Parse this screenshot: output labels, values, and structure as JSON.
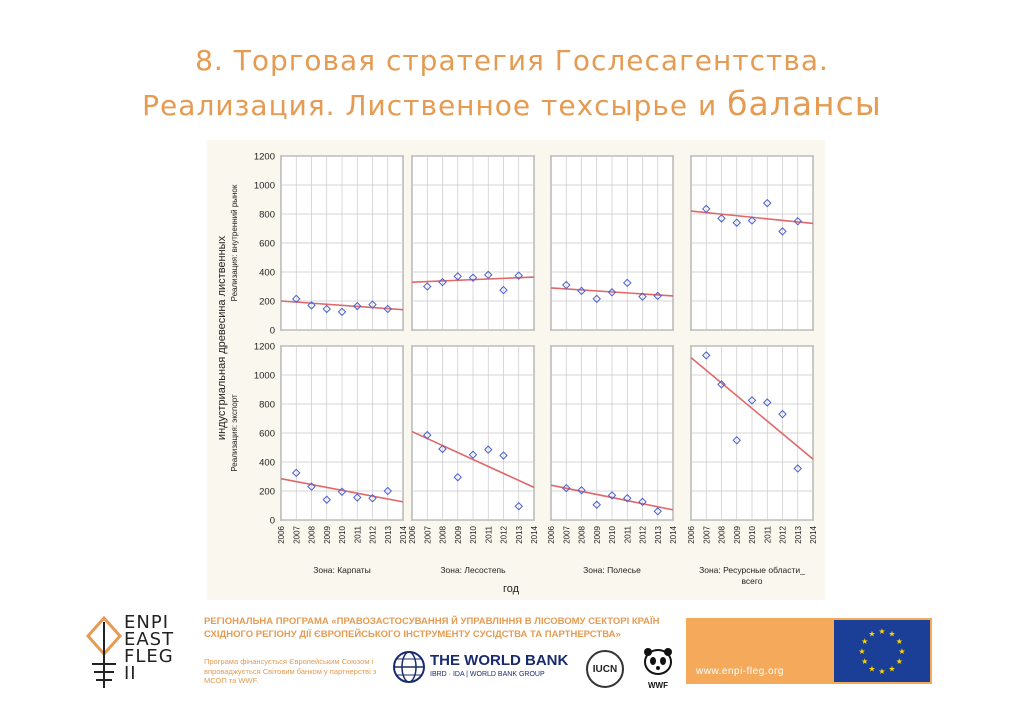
{
  "slide": {
    "title_line1": "8. Торговая стратегия Гослесагентства.",
    "title_line2_part1": "Реализация. Лиственное техсырье и ",
    "title_line2_part2": "балансы"
  },
  "colors": {
    "title": "#e59b52",
    "regression_line": "#e0686a",
    "points": "#4a5fd0",
    "grid": "#c8c8c8",
    "figure_bg": "#faf7ef",
    "eu_bar": "#f4a95b",
    "eu_flag": "#1b3f96"
  },
  "chart_data": {
    "type": "scatter",
    "xlabel": "год",
    "ylabel": "индустриальная древесина лиственных",
    "x_ticks": [
      2006,
      2007,
      2008,
      2009,
      2010,
      2011,
      2012,
      2013,
      2014
    ],
    "y_ticks": [
      0,
      200,
      400,
      600,
      800,
      1000,
      1200
    ],
    "xlim": [
      2006,
      2014
    ],
    "ylim": [
      0,
      1200
    ],
    "grid": true,
    "columns": [
      "Зона: Карпаты",
      "Зона: Лесостепь",
      "Зона: Полесье",
      "Зона: Ресурсные области_ всего"
    ],
    "rows": [
      "Реализация: внутренний рынок",
      "Реализация: экспорт"
    ],
    "panels": [
      {
        "row": 0,
        "col": 0,
        "x": [
          2007,
          2008,
          2009,
          2010,
          2011,
          2012,
          2013
        ],
        "y": [
          215,
          170,
          145,
          125,
          165,
          175,
          145
        ],
        "trend": [
          [
            2006,
            200
          ],
          [
            2014,
            140
          ]
        ]
      },
      {
        "row": 0,
        "col": 1,
        "x": [
          2007,
          2008,
          2009,
          2010,
          2011,
          2012,
          2013
        ],
        "y": [
          300,
          330,
          370,
          360,
          380,
          275,
          375
        ],
        "trend": [
          [
            2006,
            330
          ],
          [
            2014,
            365
          ]
        ]
      },
      {
        "row": 0,
        "col": 2,
        "x": [
          2007,
          2008,
          2009,
          2010,
          2011,
          2012,
          2013
        ],
        "y": [
          310,
          270,
          215,
          260,
          325,
          230,
          235
        ],
        "trend": [
          [
            2006,
            290
          ],
          [
            2014,
            235
          ]
        ]
      },
      {
        "row": 0,
        "col": 3,
        "x": [
          2007,
          2008,
          2009,
          2010,
          2011,
          2012,
          2013
        ],
        "y": [
          835,
          770,
          740,
          755,
          875,
          680,
          750
        ],
        "trend": [
          [
            2006,
            820
          ],
          [
            2014,
            735
          ]
        ]
      },
      {
        "row": 1,
        "col": 0,
        "x": [
          2007,
          2008,
          2009,
          2010,
          2011,
          2012,
          2013
        ],
        "y": [
          325,
          230,
          140,
          195,
          155,
          150,
          200
        ],
        "trend": [
          [
            2006,
            285
          ],
          [
            2014,
            125
          ]
        ]
      },
      {
        "row": 1,
        "col": 1,
        "x": [
          2007,
          2008,
          2009,
          2010,
          2011,
          2012,
          2013
        ],
        "y": [
          585,
          490,
          295,
          450,
          485,
          445,
          95
        ],
        "trend": [
          [
            2006,
            610
          ],
          [
            2014,
            225
          ]
        ]
      },
      {
        "row": 1,
        "col": 2,
        "x": [
          2007,
          2008,
          2009,
          2010,
          2011,
          2012,
          2013
        ],
        "y": [
          220,
          205,
          105,
          170,
          150,
          125,
          60
        ],
        "trend": [
          [
            2006,
            240
          ],
          [
            2014,
            70
          ]
        ]
      },
      {
        "row": 1,
        "col": 3,
        "x": [
          2007,
          2008,
          2009,
          2010,
          2011,
          2012,
          2013
        ],
        "y": [
          1135,
          935,
          550,
          825,
          810,
          730,
          355
        ],
        "trend": [
          [
            2006,
            1120
          ],
          [
            2014,
            420
          ]
        ]
      }
    ]
  },
  "footer": {
    "program_title": "РЕГІОНАЛЬНА ПРОГРАМА «ПРАВОЗАСТОСУВАННЯ Й УПРАВЛІННЯ В ЛІСОВОМУ СЕКТОРІ КРАЇН СХІДНОГО РЕГІОНУ ДІЇ ЄВРОПЕЙСЬКОГО ІНСТРУМЕНТУ СУСІДСТВА ТА ПАРТНЕРСТВА»",
    "program_note": "Програма фінансується Європейським Союзом і впроваджується Світовим банком у партнерстві з МСОП та WWF.",
    "logo_text": [
      "ENPI",
      "EAST",
      "FLEG",
      "II"
    ],
    "world_bank": "THE WORLD BANK",
    "world_bank_sub": "IBRD · IDA | WORLD BANK GROUP",
    "iucn": "IUCN",
    "wwf": "WWF",
    "url": "www.enpi-fleg.org"
  }
}
